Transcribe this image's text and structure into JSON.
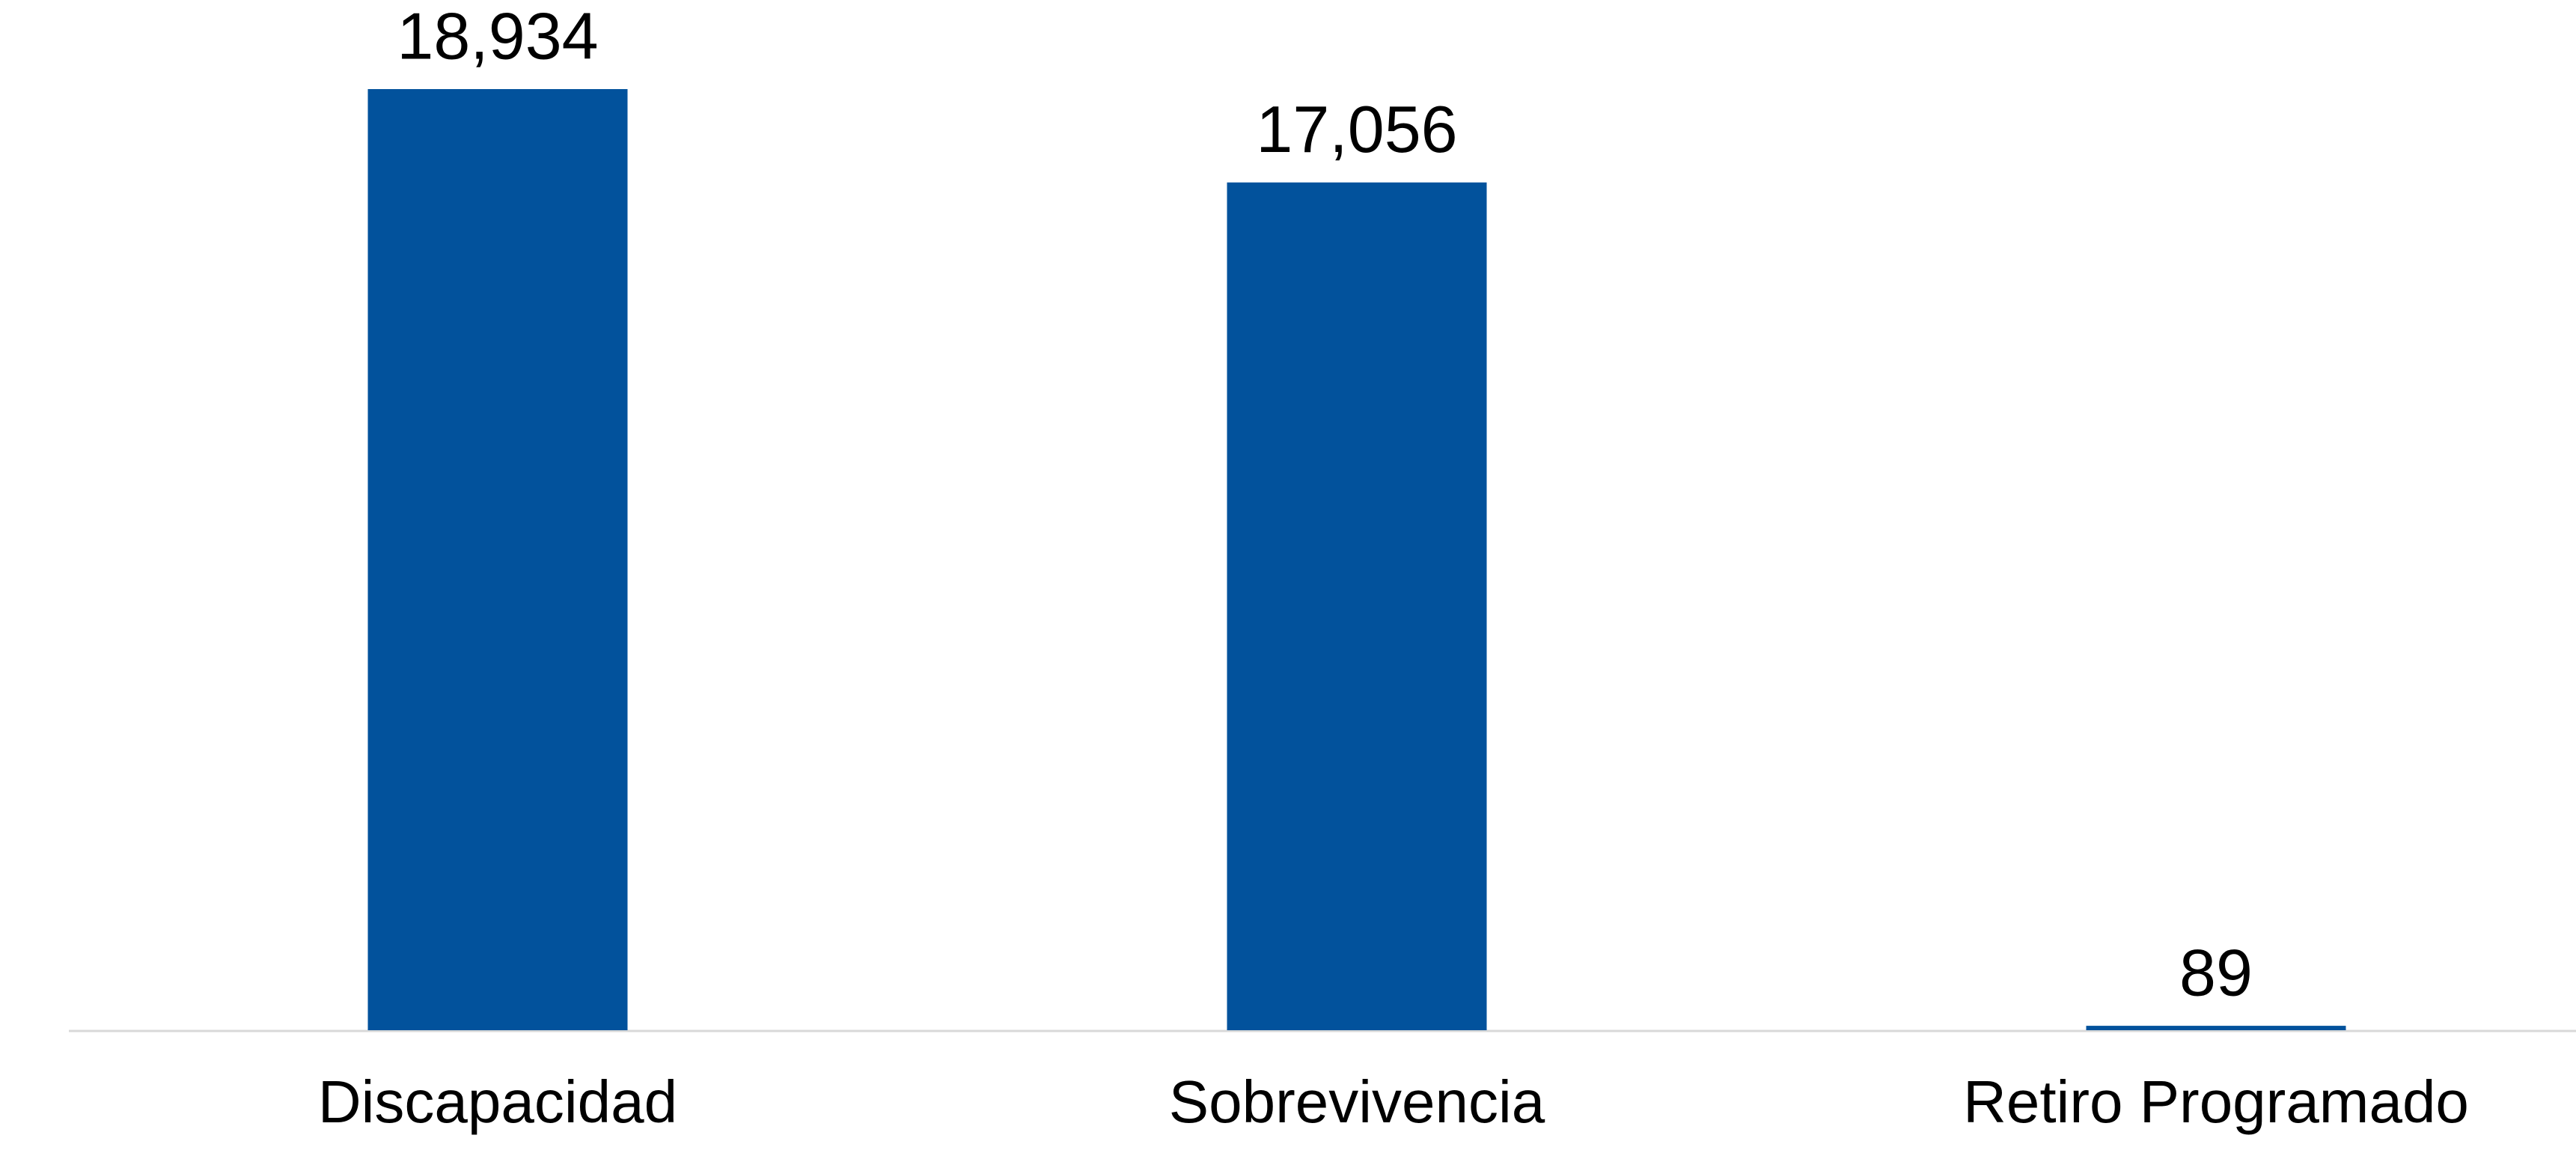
{
  "chart_data": {
    "type": "bar",
    "categories": [
      "Discapacidad",
      "Sobrevivencia",
      "Retiro Programado"
    ],
    "values": [
      18934,
      17056,
      89
    ],
    "value_labels": [
      "18,934",
      "17,056",
      "89"
    ],
    "color": "#02529c"
  }
}
